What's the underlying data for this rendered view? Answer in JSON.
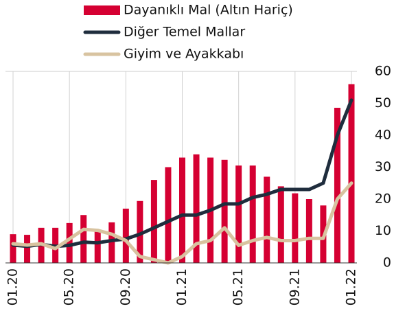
{
  "chart_data": {
    "type": "bar-line",
    "categories": [
      "01.20",
      null,
      null,
      null,
      "05.20",
      null,
      null,
      null,
      "09.20",
      null,
      null,
      null,
      "01.21",
      null,
      null,
      null,
      "05.21",
      null,
      null,
      null,
      "09.21",
      null,
      null,
      null,
      "01.22"
    ],
    "series": [
      {
        "name": "Dayanıklı Mal (Altın Hariç)",
        "kind": "bar",
        "color": "#d50032",
        "values": [
          9,
          8.8,
          11,
          11,
          12.5,
          15,
          10,
          12.7,
          17,
          19.4,
          26,
          30,
          33,
          34,
          33,
          32.3,
          30.5,
          30.5,
          27,
          24,
          21.8,
          20,
          18,
          48.6,
          56
        ]
      },
      {
        "name": "Diğer Temel Mallar",
        "kind": "line",
        "color": "#1f2d3d",
        "values": [
          5.6,
          5.2,
          5.8,
          5.2,
          5.5,
          6.5,
          6.3,
          7,
          7.5,
          9,
          11,
          13,
          15,
          15,
          16.5,
          18.5,
          18.5,
          20.5,
          21.5,
          23,
          23,
          23,
          25,
          40,
          51
        ]
      },
      {
        "name": "Giyim ve Ayakkabı",
        "kind": "line",
        "color": "#d8c3a0",
        "values": [
          6,
          5.6,
          6,
          4.5,
          7.5,
          10.5,
          10.2,
          9,
          7,
          2,
          1,
          0,
          2,
          6,
          7,
          11,
          5.5,
          7,
          8,
          7,
          7,
          7.7,
          7.7,
          20,
          25
        ]
      }
    ],
    "ylim": [
      0,
      60
    ],
    "yticks": [
      0,
      10,
      20,
      30,
      40,
      50,
      60
    ],
    "grid": true
  }
}
